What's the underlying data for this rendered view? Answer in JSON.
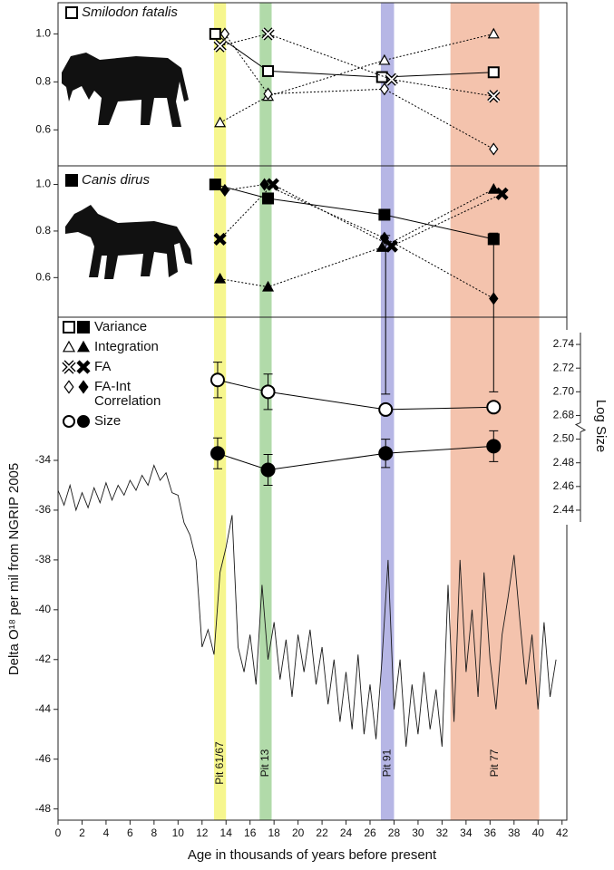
{
  "chart_data": [
    {
      "type": "line",
      "title": "Smilodon fatalis",
      "ylim": [
        0.45,
        1.13
      ],
      "yticks": [
        0.6,
        0.8,
        {
          "value": 1.0,
          "label": "1.0"
        }
      ],
      "series": [
        {
          "name": "Variance",
          "marker": "square",
          "filled": false,
          "line": "solid",
          "x": [
            13.1,
            17.5,
            27.0,
            36.3
          ],
          "values": [
            1.0,
            0.845,
            0.82,
            0.84
          ]
        },
        {
          "name": "Integration",
          "marker": "triangle",
          "filled": false,
          "line": "dotted",
          "x": [
            13.5,
            17.5,
            27.2,
            36.3
          ],
          "values": [
            0.63,
            0.74,
            0.89,
            1.0
          ]
        },
        {
          "name": "FA",
          "marker": "x",
          "filled": false,
          "line": "dotted",
          "x": [
            13.5,
            17.5,
            27.8,
            36.3
          ],
          "values": [
            0.95,
            1.0,
            0.81,
            0.74
          ]
        },
        {
          "name": "FA-Int Correlation",
          "marker": "diamond",
          "filled": false,
          "line": "dotted",
          "x": [
            13.9,
            17.5,
            27.2,
            36.3
          ],
          "values": [
            1.0,
            0.75,
            0.77,
            0.52
          ]
        }
      ]
    },
    {
      "type": "line",
      "title": "Canis dirus",
      "ylim": [
        0.43,
        1.08
      ],
      "yticks": [
        0.6,
        0.8,
        {
          "value": 1.0,
          "label": "1.0"
        }
      ],
      "series": [
        {
          "marker": "square",
          "filled": true,
          "line": "solid",
          "x": [
            13.1,
            17.5,
            27.2,
            36.3
          ],
          "values": [
            1.0,
            0.94,
            0.87,
            0.765
          ]
        },
        {
          "marker": "triangle",
          "filled": true,
          "line": "dotted",
          "x": [
            13.5,
            17.5,
            27.0,
            36.3
          ],
          "values": [
            0.595,
            0.56,
            0.73,
            0.98
          ]
        },
        {
          "marker": "x",
          "filled": true,
          "line": "dotted",
          "x": [
            13.5,
            17.9,
            27.8,
            37.0
          ],
          "values": [
            0.765,
            1.0,
            0.735,
            0.96
          ]
        },
        {
          "marker": "diamond",
          "filled": true,
          "line": "dotted",
          "x": [
            13.9,
            17.2,
            27.2,
            36.3
          ],
          "values": [
            0.975,
            1.0,
            0.77,
            0.51
          ]
        }
      ]
    },
    {
      "type": "line",
      "xlabel": "Age in thousands of years before present",
      "ylabel": "Delta O¹⁸ per mil from NGRIP 2005",
      "y2label": "Log Size",
      "xlim": [
        0,
        42.4
      ],
      "xticks": [
        0,
        2,
        4,
        6,
        8,
        10,
        12,
        14,
        16,
        18,
        20,
        22,
        24,
        26,
        28,
        30,
        32,
        34,
        36,
        38,
        40,
        42
      ],
      "ylim": [
        -48.45,
        -28.25
      ],
      "yticks": [
        -34,
        -36,
        -38,
        -40,
        -42,
        -44,
        -46,
        -48
      ],
      "y2lim": [
        2.43,
        2.75
      ],
      "y2ticks": [
        2.44,
        2.46,
        2.48,
        {
          "value": 2.5,
          "label": "2.50"
        },
        2.68,
        {
          "value": 2.7,
          "label": "2.70"
        },
        2.72,
        2.74
      ],
      "bands": [
        {
          "label": "Pit 61/67",
          "range": [
            13.0,
            14.0
          ],
          "color": "#f4f47a"
        },
        {
          "label": "Pit 13",
          "range": [
            16.8,
            17.8
          ],
          "color": "#a3d39a"
        },
        {
          "label": "Pit 91",
          "range": [
            26.9,
            28.0
          ],
          "color": "#a9a9e0"
        },
        {
          "label": "Pit 77",
          "range": [
            32.7,
            40.1
          ],
          "color": "#f2b99f"
        }
      ],
      "series": [
        {
          "color": "#1a1a1a",
          "x": [
            0,
            0.5,
            1,
            1.5,
            2,
            2.5,
            3,
            3.5,
            4,
            4.5,
            5,
            5.5,
            6,
            6.5,
            7,
            7.5,
            8,
            8.5,
            9,
            9.5,
            10,
            10.5,
            11,
            11.5,
            12,
            12.5,
            13,
            13.5,
            14,
            14.5,
            15,
            15.5,
            16,
            16.5,
            17,
            17.5,
            18,
            18.5,
            19,
            19.5,
            20,
            20.5,
            21,
            21.5,
            22,
            22.5,
            23,
            23.5,
            24,
            24.5,
            25,
            25.5,
            26,
            26.5,
            27,
            27.5,
            28,
            28.5,
            29,
            29.5,
            30,
            30.5,
            31,
            31.5,
            32,
            32.5,
            33,
            33.5,
            34,
            34.5,
            35,
            35.5,
            36,
            36.5,
            37,
            37.5,
            38,
            38.5,
            39,
            39.5,
            40,
            40.5,
            41,
            41.5
          ],
          "values": [
            -35.2,
            -35.8,
            -35.0,
            -36.0,
            -35.3,
            -35.9,
            -35.1,
            -35.7,
            -34.9,
            -35.6,
            -35.0,
            -35.4,
            -34.8,
            -35.2,
            -34.6,
            -35.0,
            -34.2,
            -34.8,
            -34.5,
            -35.3,
            -35.4,
            -36.5,
            -37.0,
            -38.0,
            -41.5,
            -40.8,
            -41.8,
            -38.5,
            -37.5,
            -36.2,
            -41.5,
            -42.5,
            -41.0,
            -43.0,
            -39.0,
            -42.0,
            -40.5,
            -42.8,
            -41.2,
            -43.5,
            -41.0,
            -42.5,
            -40.8,
            -43.0,
            -41.5,
            -43.8,
            -42.0,
            -44.5,
            -42.5,
            -44.8,
            -41.8,
            -45.0,
            -43.0,
            -45.2,
            -42.0,
            -38.0,
            -44.0,
            -42.0,
            -45.5,
            -43.0,
            -45.0,
            -42.5,
            -44.8,
            -43.2,
            -45.5,
            -39.0,
            -44.5,
            -38.0,
            -42.5,
            -40.0,
            -43.5,
            -38.5,
            -42.0,
            -44.0,
            -41.0,
            -39.5,
            -37.8,
            -40.5,
            -43.0,
            -41.0,
            -44.0,
            -40.5,
            -43.5,
            -42.0
          ]
        },
        {
          "name": "Size",
          "axis": "y2",
          "marker": "circle",
          "filled": false,
          "line": "solid",
          "x": [
            13.3,
            17.5,
            27.3,
            36.3
          ],
          "values": [
            2.71,
            2.7,
            2.685,
            2.687
          ],
          "errors": [
            0.015,
            0.015,
            0.013,
            0.013
          ]
        },
        {
          "axis": "y2",
          "marker": "circle",
          "filled": true,
          "line": "solid",
          "x": [
            13.3,
            17.5,
            27.3,
            36.3
          ],
          "values": [
            2.488,
            2.474,
            2.488,
            2.494
          ],
          "errors": [
            0.013,
            0.013,
            0.012,
            0.013
          ]
        }
      ]
    }
  ]
}
